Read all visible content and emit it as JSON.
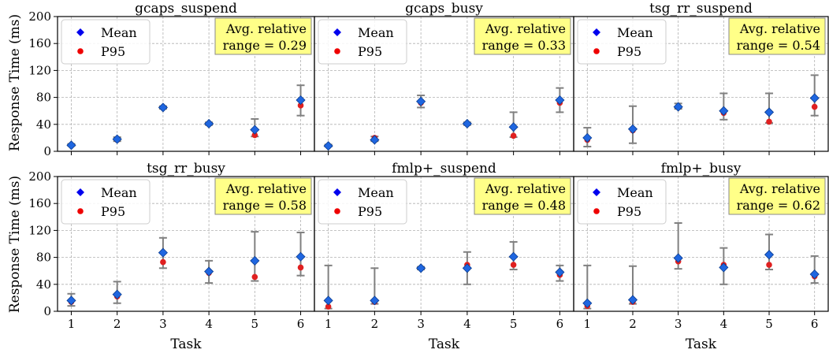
{
  "chart_data": {
    "type": "scatter",
    "layout": "2x3 small multiples",
    "xlabel": "Task",
    "ylabel": "Response Time (ms)",
    "x": [
      1,
      2,
      3,
      4,
      5,
      6
    ],
    "xlim": [
      0.7,
      6.3
    ],
    "ylim": [
      0,
      200
    ],
    "yticks": [
      0,
      40,
      80,
      120,
      160,
      200
    ],
    "grid": true,
    "legend": {
      "placement": "top-left",
      "entries": [
        "Mean",
        "P95"
      ]
    },
    "colors": {
      "mean": "#1f66e0",
      "p95": "#e02020",
      "error_bar": "#808080",
      "annotation_bg": "#ffff88"
    },
    "annotation_label": "Avg. relative",
    "panels": [
      {
        "title": "gcaps_suspend",
        "annotation": "range = 0.29",
        "mean": [
          9,
          18,
          65,
          41,
          32,
          76
        ],
        "p95": [
          9,
          17,
          65,
          41,
          24,
          68
        ],
        "err_low": [
          8,
          15,
          63,
          39,
          22,
          53
        ],
        "err_high": [
          11,
          21,
          67,
          43,
          48,
          98
        ]
      },
      {
        "title": "gcaps_busy",
        "annotation": "range = 0.33",
        "mean": [
          8,
          17,
          74,
          41,
          36,
          76
        ],
        "p95": [
          8,
          20,
          72,
          41,
          23,
          72
        ],
        "err_low": [
          7,
          15,
          65,
          39,
          21,
          58
        ],
        "err_high": [
          10,
          22,
          83,
          43,
          58,
          94
        ]
      },
      {
        "title": "tsg_rr_suspend",
        "annotation": "range = 0.54",
        "mean": [
          20,
          33,
          66,
          60,
          58,
          79
        ],
        "p95": [
          17,
          31,
          66,
          57,
          44,
          66
        ],
        "err_low": [
          7,
          12,
          63,
          47,
          42,
          53
        ],
        "err_high": [
          35,
          67,
          71,
          86,
          86,
          113
        ]
      },
      {
        "title": "tsg_rr_busy",
        "annotation": "range = 0.58",
        "mean": [
          16,
          25,
          87,
          59,
          75,
          81
        ],
        "p95": [
          14,
          22,
          73,
          57,
          51,
          65
        ],
        "err_low": [
          8,
          12,
          64,
          42,
          45,
          53
        ],
        "err_high": [
          26,
          44,
          109,
          75,
          118,
          117
        ]
      },
      {
        "title": "fmlp+_suspend",
        "annotation": "range = 0.48",
        "mean": [
          16,
          16,
          64,
          64,
          81,
          58
        ],
        "p95": [
          7,
          14,
          64,
          69,
          69,
          54
        ],
        "err_low": [
          4,
          11,
          62,
          40,
          62,
          45
        ],
        "err_high": [
          68,
          64,
          66,
          88,
          103,
          68
        ]
      },
      {
        "title": "fmlp+_busy",
        "annotation": "range = 0.62",
        "mean": [
          12,
          17,
          79,
          65,
          84,
          55
        ],
        "p95": [
          8,
          14,
          74,
          69,
          69,
          52
        ],
        "err_low": [
          4,
          11,
          63,
          40,
          62,
          42
        ],
        "err_high": [
          68,
          67,
          131,
          94,
          114,
          82
        ]
      }
    ]
  }
}
